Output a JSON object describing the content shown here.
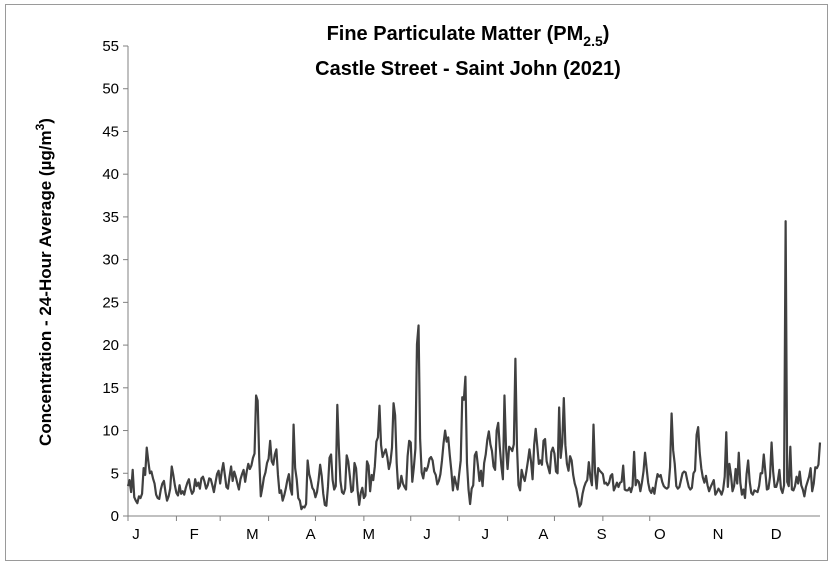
{
  "chart_data": {
    "type": "line",
    "title_main": "Fine Particulate Matter (PM",
    "title_sub": "2.5",
    "title_close": ")",
    "subtitle": "Castle Street - Saint John (2021)",
    "ylabel_main": "Concentration - 24-Hour Average (µg/m",
    "ylabel_sup": "3",
    "ylabel_close": ")",
    "xlabel": "",
    "ylim": [
      0,
      55
    ],
    "yticks": [
      0,
      5,
      10,
      15,
      20,
      25,
      30,
      35,
      40,
      45,
      50,
      55
    ],
    "x_tick_labels": [
      "J",
      "F",
      "M",
      "A",
      "M",
      "J",
      "J",
      "A",
      "S",
      "O",
      "N",
      "D"
    ],
    "x_unit": "day of year",
    "grid": false,
    "legend": "none",
    "line_color": "#404040",
    "series": [
      {
        "values": [
          3.5,
          4.2,
          2.8,
          5.4,
          2.2,
          1.8,
          1.5,
          2.3,
          2.1,
          2.6,
          5.6,
          4.8,
          8.0,
          6.4,
          5.0,
          5.2,
          4.4,
          3.8,
          2.5,
          2.1,
          2.0,
          3.1,
          3.8,
          4.1,
          2.8,
          1.8,
          2.3,
          3.2,
          5.8,
          4.8,
          3.6,
          2.7,
          2.4,
          3.6,
          2.6,
          2.9,
          2.5,
          3.3,
          3.9,
          4.3,
          3.2,
          2.6,
          2.9,
          4.3,
          3.5,
          3.9,
          3.2,
          4.4,
          4.6,
          4.0,
          3.2,
          3.6,
          4.4,
          4.3,
          3.6,
          2.8,
          3.9,
          4.9,
          5.3,
          3.8,
          5.2,
          6.2,
          4.8,
          3.4,
          3.2,
          4.6,
          5.8,
          4.1,
          5.2,
          4.6,
          3.8,
          3.1,
          4.3,
          4.9,
          5.4,
          4.0,
          5.2,
          6.1,
          5.5,
          5.9,
          6.8,
          7.3,
          14.1,
          13.5,
          6.8,
          2.3,
          3.3,
          4.5,
          5.1,
          6.2,
          6.7,
          8.8,
          6.4,
          6.0,
          7.2,
          7.8,
          4.8,
          2.7,
          3.0,
          1.8,
          2.4,
          3.2,
          4.2,
          4.9,
          3.2,
          2.5,
          10.7,
          5.6,
          4.3,
          2.1,
          1.8,
          0.8,
          1.1,
          1.0,
          1.4,
          6.5,
          4.9,
          4.2,
          3.3,
          3.0,
          2.2,
          2.8,
          4.2,
          6.0,
          4.7,
          2.6,
          1.3,
          1.2,
          3.4,
          6.8,
          7.2,
          4.2,
          3.1,
          3.5,
          13.0,
          7.9,
          4.1,
          2.8,
          2.6,
          3.2,
          7.1,
          6.4,
          4.7,
          2.8,
          3.0,
          6.2,
          5.6,
          3.0,
          1.3,
          2.7,
          3.3,
          2.1,
          2.4,
          6.4,
          5.9,
          2.9,
          4.8,
          4.2,
          5.8,
          8.7,
          9.2,
          12.9,
          8.3,
          6.9,
          7.4,
          7.8,
          6.9,
          5.5,
          6.3,
          8.0,
          13.2,
          11.8,
          6.2,
          3.2,
          3.5,
          4.7,
          3.8,
          3.4,
          3.1,
          7.0,
          8.8,
          8.6,
          4.0,
          5.7,
          7.9,
          20.1,
          22.3,
          9.0,
          5.1,
          4.4,
          5.6,
          5.3,
          5.8,
          6.7,
          6.9,
          6.5,
          5.2,
          4.8,
          3.7,
          4.1,
          4.9,
          6.5,
          8.5,
          10.0,
          8.7,
          9.2,
          7.1,
          5.3,
          3.0,
          4.6,
          3.8,
          3.1,
          4.9,
          6.5,
          13.9,
          13.6,
          16.3,
          6.2,
          3.1,
          1.4,
          3.2,
          3.6,
          7.1,
          7.5,
          5.9,
          4.1,
          5.3,
          3.5,
          6.2,
          7.2,
          8.9,
          9.9,
          8.4,
          7.6,
          5.8,
          5.4,
          10.0,
          10.9,
          8.1,
          5.9,
          4.3,
          14.1,
          8.0,
          5.5,
          8.1,
          7.9,
          7.6,
          8.4,
          18.4,
          8.2,
          3.6,
          3.0,
          5.4,
          4.6,
          4.1,
          5.2,
          6.4,
          7.8,
          6.4,
          4.3,
          8.3,
          10.2,
          8.2,
          6.1,
          6.5,
          6.0,
          8.8,
          9.0,
          6.4,
          5.7,
          5.0,
          7.5,
          8.0,
          7.3,
          5.2,
          5.0,
          12.7,
          6.8,
          8.6,
          13.8,
          8.3,
          6.1,
          5.3,
          7.0,
          6.5,
          4.8,
          3.8,
          3.2,
          2.2,
          1.1,
          1.4,
          2.6,
          3.4,
          3.9,
          4.2,
          6.3,
          4.5,
          3.6,
          10.7,
          5.1,
          3.2,
          5.6,
          5.3,
          5.1,
          4.9,
          3.8,
          3.9,
          3.6,
          3.9,
          4.7,
          4.9,
          3.0,
          3.4,
          3.9,
          3.4,
          3.9,
          4.0,
          5.9,
          3.1,
          3.0,
          3.0,
          3.3,
          2.8,
          3.5,
          7.5,
          3.6,
          4.2,
          4.0,
          2.9,
          3.9,
          5.2,
          7.4,
          5.6,
          3.9,
          3.0,
          2.7,
          3.3,
          2.6,
          3.9,
          4.9,
          4.6,
          4.8,
          4.0,
          3.5,
          3.3,
          3.2,
          3.4,
          5.7,
          12.0,
          7.7,
          6.1,
          3.5,
          3.2,
          3.4,
          4.2,
          5.0,
          5.2,
          5.1,
          4.2,
          3.4,
          3.1,
          3.3,
          5.0,
          5.3,
          9.5,
          10.4,
          7.4,
          5.6,
          4.5,
          3.9,
          4.7,
          3.6,
          2.9,
          3.4,
          3.8,
          4.2,
          2.5,
          2.8,
          3.2,
          2.9,
          2.5,
          3.1,
          4.6,
          9.8,
          3.4,
          6.1,
          4.8,
          2.9,
          3.5,
          5.5,
          3.8,
          7.4,
          3.9,
          2.5,
          3.1,
          2.1,
          4.9,
          6.5,
          4.0,
          2.7,
          2.5,
          3.0,
          2.9,
          2.8,
          3.5,
          5.0,
          5.0,
          7.2,
          5.2,
          3.1,
          3.2,
          4.6,
          8.6,
          5.2,
          3.4,
          3.4,
          4.1,
          5.4,
          3.2,
          2.7,
          3.6,
          34.5,
          4.0,
          3.5,
          8.1,
          3.1,
          3.0,
          3.5,
          4.6,
          3.8,
          5.2,
          3.6,
          3.1,
          2.3,
          3.4,
          4.0,
          4.6,
          5.6,
          2.9,
          3.8,
          5.7,
          5.6,
          6.0,
          8.6
        ]
      }
    ]
  }
}
